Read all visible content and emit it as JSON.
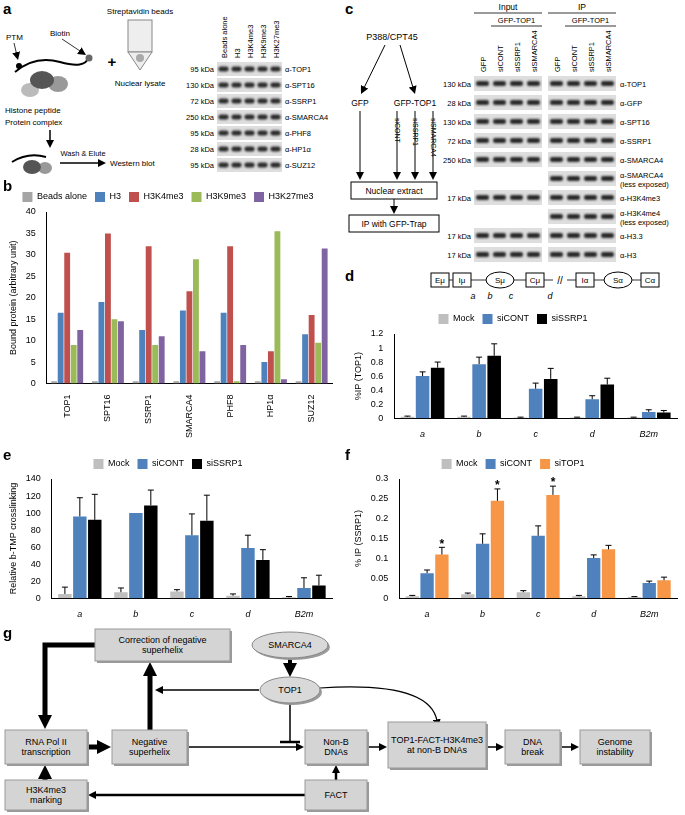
{
  "panel_labels": [
    "a",
    "b",
    "c",
    "d",
    "e",
    "f",
    "g"
  ],
  "panel_a": {
    "schematic": {
      "ptm": "PTM",
      "biotin": "Biotin",
      "beads": "Streptavidin beads",
      "plus": "+",
      "peptide": "Histone peptide",
      "complex": "Protein complex",
      "lysate": "Nuclear lysate",
      "wash": "Wash & Elute",
      "western": "Western blot"
    },
    "blot": {
      "columns": [
        "Beads alone",
        "H3",
        "H3K4me3",
        "H3K9me3",
        "H3K27me3"
      ],
      "rows": [
        {
          "size": "95 kDa",
          "antibody": "α-TOP1"
        },
        {
          "size": "130 kDa",
          "antibody": "α-SPT16"
        },
        {
          "size": "72 kDa",
          "antibody": "α-SSRP1"
        },
        {
          "size": "250 kDa",
          "antibody": "α-SMARCA4"
        },
        {
          "size": "95 kDa",
          "antibody": "α-PHF8"
        },
        {
          "size": "28 kDa",
          "antibody": "α-HP1α"
        },
        {
          "size": "95 kDa",
          "antibody": "α-SUZ12"
        }
      ]
    }
  },
  "panel_c": {
    "flow": {
      "source": "P388/CPT45",
      "branches": [
        "GFP",
        "GFP-TOP1"
      ],
      "treatments": [
        "siCONT",
        "siSSRP1",
        "siSMARCA4"
      ],
      "steps": [
        "Nuclear extract",
        "IP with GFP-Trap"
      ]
    },
    "blot": {
      "groups": [
        "Input",
        "IP"
      ],
      "group_subheader": "GFP-TOP1",
      "lanes": [
        "GFP",
        "siCONT",
        "siSSRP1",
        "siSMARCA4"
      ],
      "rows": [
        {
          "size": "130 kDa",
          "antibody": "α-TOP1"
        },
        {
          "size": "28 kDa",
          "antibody": "α-GFP"
        },
        {
          "size": "130 kDa",
          "antibody": "α-SPT16"
        },
        {
          "size": "72 kDa",
          "antibody": "α-SSRP1"
        },
        {
          "size": "250 kDa",
          "antibody": "α-SMARCA4"
        },
        {
          "antibody": "α-SMARCA4 (less exposed)",
          "ip_only": true
        },
        {
          "size": "17 kDa",
          "antibody": "α-H3K4me3"
        },
        {
          "antibody": "α-H3K4me4 (less exposed)",
          "ip_only": true
        },
        {
          "size": "17 kDa",
          "antibody": "α-H3.3"
        },
        {
          "size": "17 kDa",
          "antibody": "α-H3"
        }
      ]
    }
  },
  "panel_d_gene": {
    "elements": [
      "Eμ",
      "Iμ",
      "Sμ",
      "Cμ",
      "Iα",
      "Sα",
      "Cα"
    ],
    "break": "//",
    "sites": [
      "a",
      "b",
      "c",
      "d"
    ]
  },
  "chart_data": [
    {
      "type": "bar",
      "ylabel": "Bound protein (arbitrary unit)",
      "categories": [
        "TOP1",
        "SPT16",
        "SSRP1",
        "SMARCA4",
        "PHF8",
        "HP1α",
        "SUZ12"
      ],
      "series": [
        {
          "name": "Beads alone",
          "color": "#a5a5a5",
          "values": [
            0.5,
            0.5,
            0.5,
            0.5,
            0.5,
            0.5,
            0.5
          ]
        },
        {
          "name": "H3",
          "color": "#4f81bd",
          "values": [
            16.5,
            19,
            12.5,
            17,
            16.5,
            5,
            11.5
          ]
        },
        {
          "name": "H3K4me3",
          "color": "#c0504d",
          "values": [
            30.5,
            35,
            32,
            21.5,
            32,
            7.5,
            16
          ]
        },
        {
          "name": "H3K9me3",
          "color": "#9bbb59",
          "values": [
            9,
            15,
            9,
            29,
            0.5,
            35.5,
            9.5
          ]
        },
        {
          "name": "H3K27me3",
          "color": "#8064a2",
          "values": [
            12.5,
            14.5,
            11,
            7.5,
            9,
            1,
            31.5
          ]
        }
      ],
      "ylim": [
        0,
        40
      ],
      "yticks": [
        0,
        5,
        10,
        15,
        20,
        25,
        30,
        35,
        40
      ],
      "grid": false,
      "legend": "top"
    },
    {
      "type": "bar",
      "ylabel": "%IP (TOP1)",
      "categories": [
        "a",
        "b",
        "c",
        "d",
        "B2m"
      ],
      "series": [
        {
          "name": "Mock",
          "color": "#bfbfbf",
          "values": [
            0.02,
            0.02,
            0.01,
            0.01,
            0.01
          ],
          "errors": [
            0.01,
            0.01,
            0.005,
            0.005,
            0.005
          ]
        },
        {
          "name": "siCONT",
          "color": "#4f81bd",
          "values": [
            0.6,
            0.77,
            0.42,
            0.27,
            0.09
          ],
          "errors": [
            0.06,
            0.1,
            0.08,
            0.05,
            0.03
          ]
        },
        {
          "name": "siSSRP1",
          "color": "#000000",
          "values": [
            0.72,
            0.89,
            0.56,
            0.48,
            0.08
          ],
          "errors": [
            0.08,
            0.17,
            0.15,
            0.09,
            0.03
          ]
        }
      ],
      "ylim": [
        0,
        1.2
      ],
      "yticks": [
        0,
        0.2,
        0.4,
        0.6,
        0.8,
        1,
        1.2
      ],
      "grid": false,
      "legend": "top"
    },
    {
      "type": "bar",
      "ylabel": "Relative b-TMP crosslinking",
      "categories": [
        "a",
        "b",
        "c",
        "d",
        "B2m"
      ],
      "series": [
        {
          "name": "Mock",
          "color": "#bfbfbf",
          "values": [
            5,
            7,
            8,
            3,
            1
          ],
          "errors": [
            8,
            5,
            2,
            2,
            1
          ]
        },
        {
          "name": "siCONT",
          "color": "#4f81bd",
          "values": [
            96,
            100,
            74,
            59,
            12
          ],
          "errors": [
            22,
            0,
            25,
            15,
            12
          ]
        },
        {
          "name": "siSSRP1",
          "color": "#000000",
          "values": [
            92,
            109,
            91,
            45,
            15
          ],
          "errors": [
            30,
            18,
            30,
            12,
            12
          ]
        }
      ],
      "ylim": [
        0,
        140
      ],
      "yticks": [
        0,
        20,
        40,
        60,
        80,
        100,
        120,
        140
      ],
      "grid": false,
      "legend": "top"
    },
    {
      "type": "bar",
      "ylabel": "% IP (SSRP1)",
      "categories": [
        "a",
        "b",
        "c",
        "d",
        "B2m"
      ],
      "series": [
        {
          "name": "Mock",
          "color": "#bfbfbf",
          "values": [
            0.005,
            0.01,
            0.015,
            0.005,
            0.003
          ],
          "errors": [
            0.002,
            0.003,
            0.004,
            0.002,
            0.001
          ]
        },
        {
          "name": "siCONT",
          "color": "#4f81bd",
          "values": [
            0.063,
            0.137,
            0.157,
            0.101,
            0.038
          ],
          "errors": [
            0.008,
            0.025,
            0.025,
            0.008,
            0.005
          ]
        },
        {
          "name": "siTOP1",
          "color": "#f79646",
          "values": [
            0.11,
            0.245,
            0.26,
            0.123,
            0.045
          ],
          "errors": [
            0.018,
            0.03,
            0.022,
            0.01,
            0.008
          ]
        }
      ],
      "annotations": [
        {
          "text": "*",
          "series": "siTOP1",
          "category": "a"
        },
        {
          "text": "*",
          "series": "siTOP1",
          "category": "b"
        },
        {
          "text": "*",
          "series": "siTOP1",
          "category": "c"
        }
      ],
      "ylim": [
        0,
        0.3
      ],
      "yticks": [
        0,
        0.05,
        0.1,
        0.15,
        0.2,
        0.25,
        0.3
      ],
      "grid": false,
      "legend": "top"
    }
  ],
  "panel_g": {
    "nodes": {
      "correction": "Correction of negative superhelix",
      "smarca4": "SMARCA4",
      "top1": "TOP1",
      "rnapol": "RNA Pol II transcription",
      "superhelix": "Negative superhelix",
      "nonb": "Non-B DNAs",
      "complex": "TOP1-FACT-H3K4me3 at non-B DNAs",
      "dnabreak": "DNA break",
      "instability": "Genome instability",
      "h3k4me3": "H3K4me3 marking",
      "fact": "FACT"
    }
  }
}
